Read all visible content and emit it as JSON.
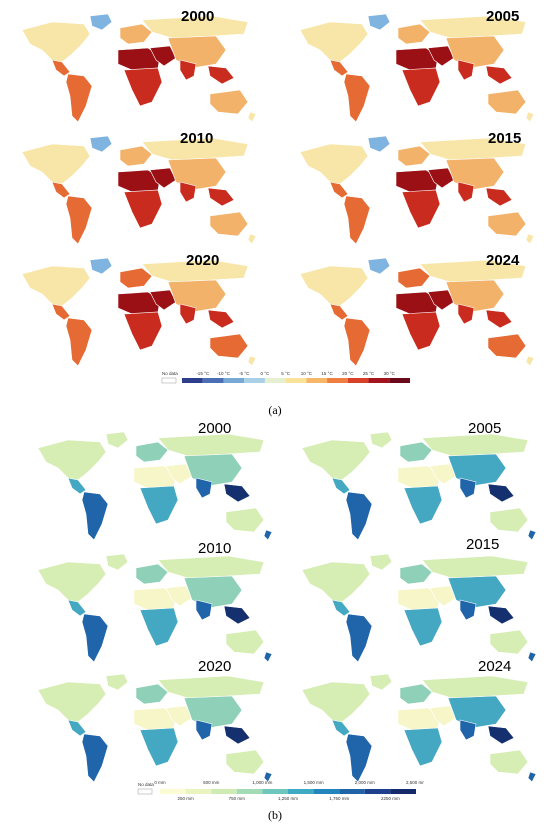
{
  "panel_a": {
    "label": "(a)",
    "maps": [
      {
        "year": "2000"
      },
      {
        "year": "2005"
      },
      {
        "year": "2010"
      },
      {
        "year": "2015"
      },
      {
        "year": "2020"
      },
      {
        "year": "2024"
      }
    ],
    "legend": {
      "no_data": "No data",
      "ticks": [
        "-15 °C",
        "-10 °C",
        "-5 °C",
        "0 °C",
        "5 °C",
        "10 °C",
        "15 °C",
        "20 °C",
        "25 °C",
        "30 °C"
      ],
      "colors": [
        "#2d3e8c",
        "#4a6fb5",
        "#78a8d4",
        "#a9d0e6",
        "#e6f0d0",
        "#f9e39a",
        "#f6b868",
        "#ee7e41",
        "#d8402a",
        "#a3141f",
        "#6a0a1a"
      ]
    },
    "palette": {
      "cold": "#7fb3e0",
      "pale": "#f8e6a8",
      "warm": "#f2b26a",
      "hot": "#e56a34",
      "veryhot": "#c92c1e",
      "extreme": "#9b1014"
    }
  },
  "panel_b": {
    "label": "(b)",
    "maps": [
      {
        "year": "2000"
      },
      {
        "year": "2005"
      },
      {
        "year": "2010"
      },
      {
        "year": "2015"
      },
      {
        "year": "2020"
      },
      {
        "year": "2024"
      }
    ],
    "legend": {
      "no_data": "No data",
      "ticks_top": [
        "0 mm",
        "500 mm",
        "1,000 mm",
        "1,500 mm",
        "2,000 mm",
        "2,500 mm"
      ],
      "ticks_bottom": [
        "250 mm",
        "750 mm",
        "1,250 mm",
        "1,750 mm",
        "2250 mm"
      ],
      "colors": [
        "#fbfbd4",
        "#eaf4bf",
        "#cdebb3",
        "#a3dbb6",
        "#6ec6bd",
        "#3eaac3",
        "#2385bb",
        "#2063a8",
        "#1d3f8e",
        "#152a6b"
      ]
    },
    "palette": {
      "dry": "#f6f6c8",
      "light": "#d6edb4",
      "mid": "#8fd0b9",
      "wet": "#44a8c3",
      "verywet": "#2064aa",
      "extreme": "#14306f"
    }
  }
}
